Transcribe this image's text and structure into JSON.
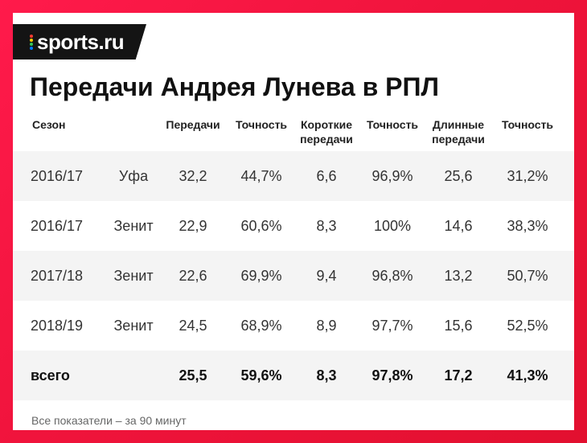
{
  "brand": {
    "logo_text": "sports.ru",
    "dot_colors": [
      "#ff3b30",
      "#ffcc00",
      "#34c759",
      "#007aff"
    ]
  },
  "title": "Передачи Андрея Лунева в РПЛ",
  "headers": {
    "season": "Сезон",
    "passes": "Передачи",
    "accuracy1": "Точность",
    "short_line1": "Короткие",
    "short_line2": "передачи",
    "accuracy2": "Точность",
    "long_line1": "Длинные",
    "long_line2": "передачи",
    "accuracy3": "Точность"
  },
  "rows": [
    {
      "season": "2016/17",
      "team": "Уфа",
      "passes": "32,2",
      "accuracy": "44,7%",
      "short": "6,6",
      "short_acc": "96,9%",
      "long": "25,6",
      "long_acc": "31,2%"
    },
    {
      "season": "2016/17",
      "team": "Зенит",
      "passes": "22,9",
      "accuracy": "60,6%",
      "short": "8,3",
      "short_acc": "100%",
      "long": "14,6",
      "long_acc": "38,3%"
    },
    {
      "season": "2017/18",
      "team": "Зенит",
      "passes": "22,6",
      "accuracy": "69,9%",
      "short": "9,4",
      "short_acc": "96,8%",
      "long": "13,2",
      "long_acc": "50,7%"
    },
    {
      "season": "2018/19",
      "team": "Зенит",
      "passes": "24,5",
      "accuracy": "68,9%",
      "short": "8,9",
      "short_acc": "97,7%",
      "long": "15,6",
      "long_acc": "52,5%"
    }
  ],
  "total": {
    "label": "всего",
    "passes": "25,5",
    "accuracy": "59,6%",
    "short": "8,3",
    "short_acc": "97,8%",
    "long": "17,2",
    "long_acc": "41,3%"
  },
  "footnote": "Все показатели – за 90 минут",
  "colors": {
    "accent": "#f0143c",
    "logo_bg": "#141414",
    "row_stripe": "#f4f4f4"
  }
}
